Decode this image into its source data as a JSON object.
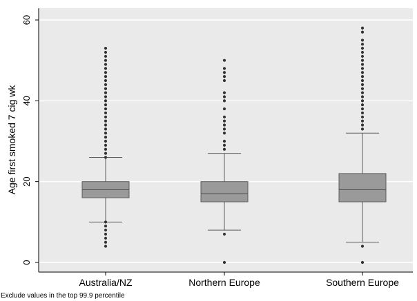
{
  "chart_data": {
    "type": "box",
    "ylabel": "Age first smoked 7 cig wk",
    "xlabel": "",
    "ylim": [
      -2,
      63
    ],
    "yticks": [
      0,
      20,
      40,
      60
    ],
    "grid": true,
    "note": "Exclude values in the top 99.9 percentile",
    "colors": {
      "plot_bg": "#eaeaea",
      "box_fill": "#9a9a9a",
      "box_stroke": "#5a5a5a",
      "outlier": "#333333",
      "grid": "#ffffff"
    },
    "categories": [
      "Australia/NZ",
      "Northern Europe",
      "Southern Europe"
    ],
    "boxes": [
      {
        "label": "Australia/NZ",
        "whisker_low": 10,
        "q1": 16,
        "median": 18,
        "q3": 20,
        "whisker_high": 26,
        "outliers": [
          4,
          5,
          6,
          7,
          8,
          9,
          10,
          26,
          27,
          28,
          29,
          30,
          31,
          32,
          33,
          34,
          35,
          36,
          37,
          38,
          39,
          40,
          41,
          42,
          43,
          44,
          45,
          46,
          47,
          48,
          49,
          50,
          51,
          52,
          53
        ]
      },
      {
        "label": "Northern Europe",
        "whisker_low": 8,
        "q1": 15,
        "median": 17,
        "q3": 20,
        "whisker_high": 27,
        "outliers": [
          0,
          7,
          28,
          29,
          30,
          32,
          33,
          34,
          35,
          36,
          38,
          40,
          41,
          42,
          45,
          46,
          47,
          48,
          50
        ]
      },
      {
        "label": "Southern Europe",
        "whisker_low": 5,
        "q1": 15,
        "median": 18,
        "q3": 22,
        "whisker_high": 32,
        "outliers": [
          0,
          4,
          33,
          34,
          35,
          36,
          37,
          38,
          39,
          40,
          41,
          42,
          43,
          44,
          45,
          46,
          47,
          48,
          49,
          50,
          51,
          52,
          53,
          54,
          55,
          57,
          58
        ]
      }
    ]
  }
}
